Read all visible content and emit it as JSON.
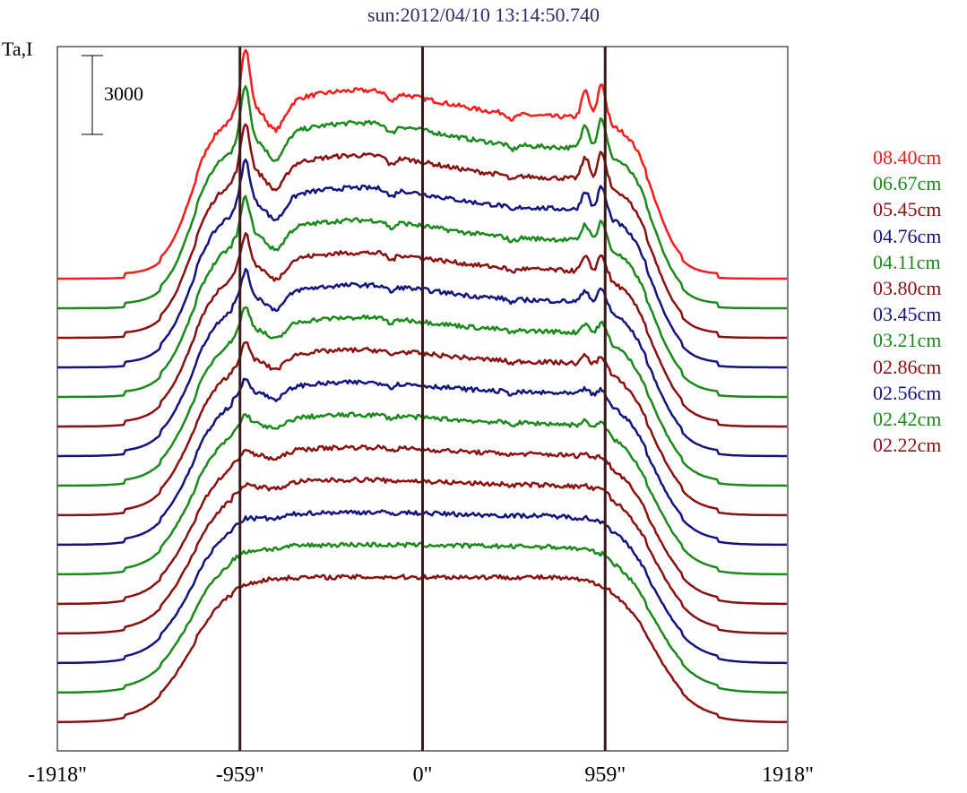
{
  "chart_data": {
    "type": "line",
    "title": "sun:2012/04/10 13:14:50.740",
    "ylabel": "Ta,I",
    "scale_bar_label": "3000",
    "x_ticks": [
      "-1918\"",
      "-959\"",
      "0\"",
      "959\"",
      "1918\""
    ],
    "xlim": [
      -1918,
      1918
    ],
    "vertical_lines_at": [
      -959,
      0,
      959
    ],
    "series": [
      {
        "name": "08.40cm",
        "color": "#ff1a1a"
      },
      {
        "name": "06.67cm",
        "color": "#1a8a1a"
      },
      {
        "name": "05.45cm",
        "color": "#8b1010"
      },
      {
        "name": "04.76cm",
        "color": "#141480"
      },
      {
        "name": "04.11cm",
        "color": "#1a8a1a"
      },
      {
        "name": "03.80cm",
        "color": "#8b1010"
      },
      {
        "name": "03.45cm",
        "color": "#141480"
      },
      {
        "name": "03.21cm",
        "color": "#1a8a1a"
      },
      {
        "name": "02.86cm",
        "color": "#8b1010"
      },
      {
        "name": "02.56cm",
        "color": "#141480"
      },
      {
        "name": "02.42cm",
        "color": "#1a8a1a"
      },
      {
        "name": "02.22cm",
        "color": "#8b1010"
      },
      {
        "name": "",
        "color": "#8b1010"
      },
      {
        "name": "",
        "color": "#141480"
      },
      {
        "name": "",
        "color": "#1a8a1a"
      },
      {
        "name": "",
        "color": "#8b1010"
      }
    ]
  }
}
